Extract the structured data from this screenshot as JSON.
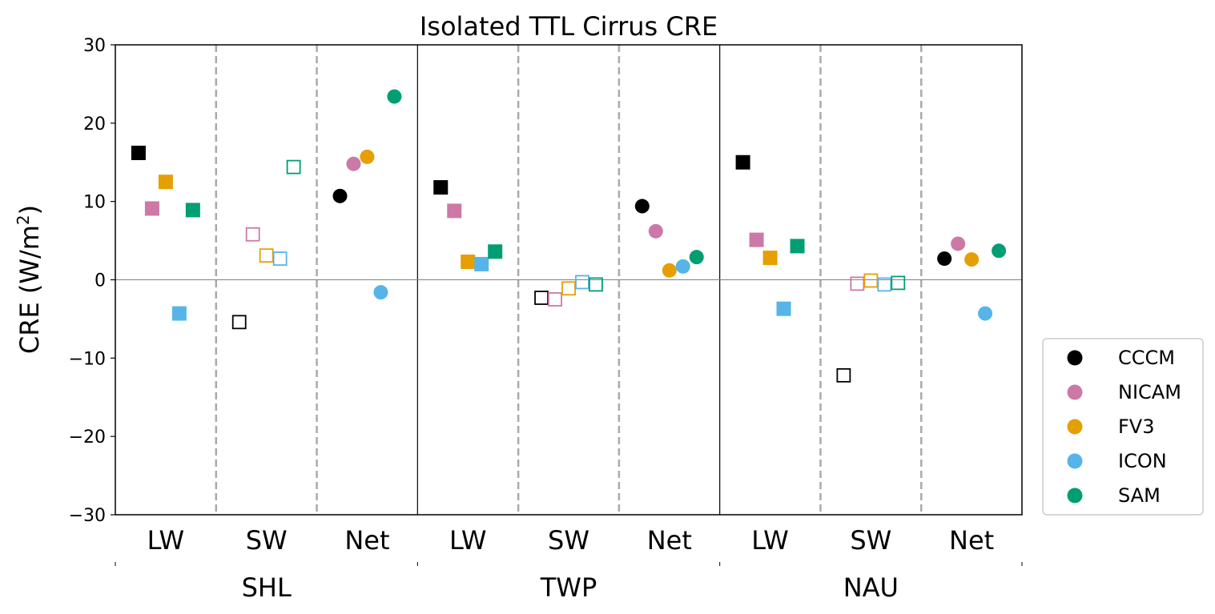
{
  "chart_data": {
    "type": "scatter",
    "title": "Isolated TTL Cirrus CRE",
    "ylabel": "CRE (W/m²)",
    "ylabel_parts": {
      "before": "CRE (W/m",
      "sup": "2",
      "after": ")"
    },
    "ylim": [
      -30,
      30
    ],
    "yticks": [
      30,
      20,
      10,
      0,
      -10,
      -20,
      -30
    ],
    "ytick_labels": [
      "30",
      "20",
      "10",
      "0",
      "−10",
      "−20",
      "−30"
    ],
    "regions": [
      "SHL",
      "TWP",
      "NAU"
    ],
    "components": [
      "LW",
      "SW",
      "Net"
    ],
    "marker_by_component": {
      "LW": "filled-square",
      "SW": "open-square",
      "Net": "filled-circle"
    },
    "legend": {
      "placement": "right-bottom",
      "marker": "filled-circle"
    },
    "zero_line": true,
    "grid": false,
    "series": [
      {
        "name": "CCCM",
        "color": "#000000",
        "values": {
          "SHL": {
            "LW": 16.2,
            "SW": -5.4,
            "Net": 10.7
          },
          "TWP": {
            "LW": 11.8,
            "SW": -2.3,
            "Net": 9.4
          },
          "NAU": {
            "LW": 15.0,
            "SW": -12.2,
            "Net": 2.7
          }
        }
      },
      {
        "name": "NICAM",
        "color": "#cc79a7",
        "values": {
          "SHL": {
            "LW": 9.1,
            "SW": 5.8,
            "Net": 14.8
          },
          "TWP": {
            "LW": 8.8,
            "SW": -2.5,
            "Net": 6.2
          },
          "NAU": {
            "LW": 5.1,
            "SW": -0.5,
            "Net": 4.6
          }
        }
      },
      {
        "name": "FV3",
        "color": "#e69f00",
        "values": {
          "SHL": {
            "LW": 12.5,
            "SW": 3.1,
            "Net": 15.7
          },
          "TWP": {
            "LW": 2.3,
            "SW": -1.1,
            "Net": 1.2
          },
          "NAU": {
            "LW": 2.8,
            "SW": -0.1,
            "Net": 2.6
          }
        }
      },
      {
        "name": "ICON",
        "color": "#56b4e9",
        "values": {
          "SHL": {
            "LW": -4.3,
            "SW": 2.7,
            "Net": -1.6
          },
          "TWP": {
            "LW": 2.0,
            "SW": -0.3,
            "Net": 1.7
          },
          "NAU": {
            "LW": -3.7,
            "SW": -0.6,
            "Net": -4.3
          }
        }
      },
      {
        "name": "SAM",
        "color": "#009e73",
        "values": {
          "SHL": {
            "LW": 8.9,
            "SW": 14.4,
            "Net": 23.4
          },
          "TWP": {
            "LW": 3.6,
            "SW": -0.6,
            "Net": 2.9
          },
          "NAU": {
            "LW": 4.3,
            "SW": -0.4,
            "Net": 3.7
          }
        }
      }
    ]
  }
}
